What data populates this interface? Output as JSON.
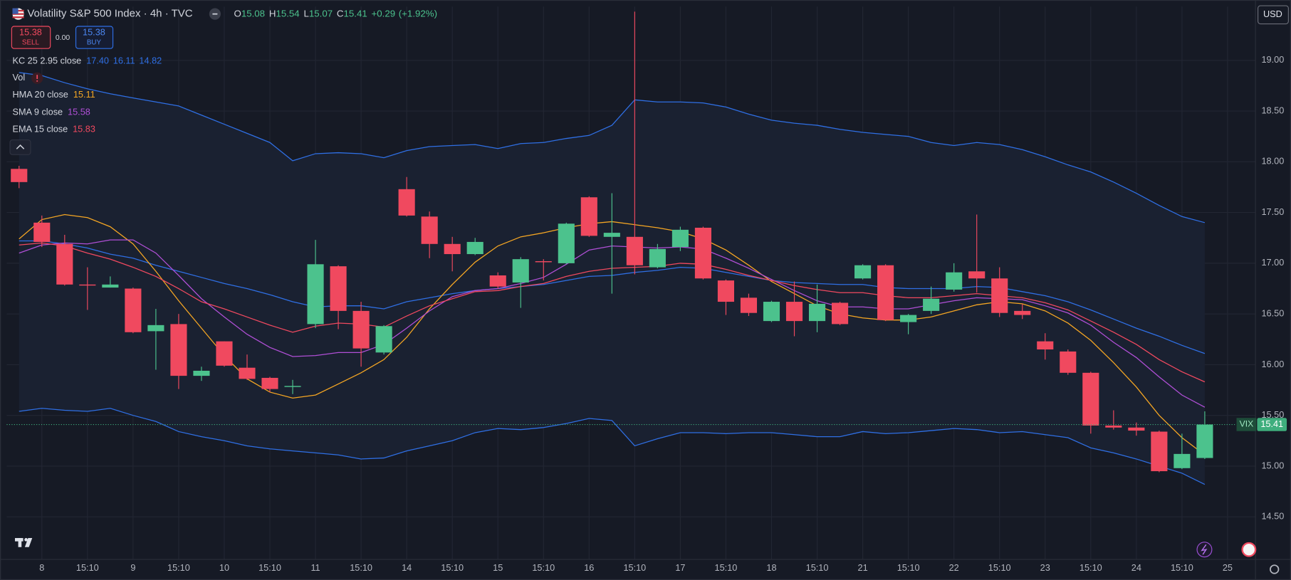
{
  "header": {
    "title": "Volatility S&P 500 Index · 4h · TVC",
    "ohlc": [
      {
        "key": "O",
        "value": "15.08"
      },
      {
        "key": "H",
        "value": "15.54"
      },
      {
        "key": "L",
        "value": "15.07"
      },
      {
        "key": "C",
        "value": "15.41"
      }
    ],
    "change": "+0.29",
    "change_pct": "(+1.92%)"
  },
  "trade": {
    "sell_price": "15.38",
    "sell": "SELL",
    "spread": "0.00",
    "buy_price": "15.38",
    "buy": "BUY"
  },
  "currency": "USD",
  "chart_data": {
    "type": "candlestick",
    "categories": [
      null,
      "8",
      null,
      "15:10",
      null,
      "9",
      null,
      "15:10",
      null,
      "10",
      null,
      "15:10",
      null,
      "11",
      null,
      "15:10",
      null,
      "14",
      null,
      "15:10",
      null,
      "15",
      null,
      "15:10",
      null,
      "16",
      null,
      "15:10",
      null,
      "17",
      null,
      "15:10",
      null,
      "18",
      null,
      "15:10",
      null,
      "21",
      null,
      "15:10",
      null,
      "22",
      null,
      "15:10",
      null,
      "23",
      null,
      "15:10",
      null,
      "24",
      null,
      "15:10",
      null,
      "25"
    ],
    "candles": {
      "up_color": "#4cc28d",
      "down_color": "#f0495f",
      "open": [
        17.93,
        17.4,
        17.19,
        16.79,
        16.76,
        16.75,
        16.33,
        16.4,
        15.89,
        16.23,
        15.97,
        15.87,
        15.78,
        16.4,
        16.97,
        16.53,
        16.12,
        17.73,
        17.46,
        17.19,
        17.09,
        16.88,
        16.81,
        17.02,
        17.0,
        17.65,
        17.26,
        17.26,
        16.96,
        17.16,
        17.35,
        16.83,
        16.66,
        16.43,
        16.62,
        16.43,
        16.61,
        16.85,
        16.98,
        16.42,
        16.53,
        16.74,
        16.92,
        16.85,
        16.53,
        16.23,
        16.13,
        15.92,
        15.4,
        15.38,
        15.34,
        14.98,
        15.08,
        null
      ],
      "high": [
        17.96,
        17.47,
        17.28,
        16.96,
        16.87,
        16.76,
        16.55,
        16.5,
        15.98,
        16.23,
        16.1,
        15.88,
        15.85,
        17.23,
        16.98,
        16.62,
        16.39,
        17.85,
        17.51,
        17.26,
        17.25,
        16.91,
        17.06,
        17.04,
        17.4,
        17.66,
        17.69,
        19.48,
        17.19,
        17.36,
        17.36,
        16.84,
        16.7,
        16.63,
        16.82,
        16.79,
        16.62,
        16.99,
        16.99,
        16.5,
        16.77,
        17.0,
        17.48,
        16.96,
        16.6,
        16.31,
        16.15,
        15.93,
        15.55,
        15.43,
        15.35,
        15.32,
        15.54,
        null
      ],
      "low": [
        17.74,
        17.16,
        16.78,
        16.54,
        16.76,
        16.31,
        15.95,
        15.76,
        15.84,
        15.98,
        15.85,
        15.73,
        15.71,
        16.36,
        16.35,
        15.98,
        16.1,
        17.46,
        17.05,
        16.92,
        17.08,
        16.75,
        16.56,
        16.83,
        16.99,
        17.26,
        16.7,
        16.89,
        16.95,
        17.12,
        16.84,
        16.49,
        16.48,
        16.42,
        16.28,
        16.32,
        16.39,
        16.84,
        16.43,
        16.3,
        16.5,
        16.72,
        16.71,
        16.47,
        16.45,
        16.05,
        15.9,
        15.32,
        15.36,
        15.3,
        14.94,
        14.97,
        15.07,
        null
      ],
      "close": [
        17.8,
        17.21,
        16.79,
        16.78,
        16.79,
        16.32,
        16.39,
        15.89,
        15.94,
        15.99,
        15.86,
        15.76,
        15.79,
        16.99,
        16.53,
        16.16,
        16.38,
        17.47,
        17.19,
        17.09,
        17.21,
        16.77,
        17.04,
        17.01,
        17.39,
        17.27,
        17.3,
        16.98,
        17.14,
        17.33,
        16.85,
        16.62,
        16.51,
        16.62,
        16.43,
        16.6,
        16.4,
        16.98,
        16.44,
        16.49,
        16.65,
        16.91,
        16.85,
        16.51,
        16.49,
        16.15,
        15.92,
        15.4,
        15.38,
        15.35,
        14.95,
        15.12,
        15.41,
        null
      ]
    },
    "series": [
      {
        "name": "KC 25 2.95 close",
        "color": "#2f6fe4",
        "fill": "#1a2131",
        "legend_values": [
          "17.40",
          "16.11",
          "14.82"
        ],
        "upper": [
          18.88,
          18.85,
          18.78,
          18.72,
          18.67,
          18.63,
          18.59,
          18.55,
          18.46,
          18.37,
          18.28,
          18.19,
          18.01,
          18.08,
          18.09,
          18.08,
          18.04,
          18.11,
          18.15,
          18.16,
          18.17,
          18.13,
          18.18,
          18.19,
          18.23,
          18.26,
          18.36,
          18.61,
          18.59,
          18.59,
          18.58,
          18.54,
          18.47,
          18.41,
          18.38,
          18.36,
          18.32,
          18.29,
          18.27,
          18.25,
          18.19,
          18.16,
          18.19,
          18.17,
          18.12,
          18.05,
          17.97,
          17.9,
          17.8,
          17.69,
          17.57,
          17.46,
          17.4,
          null
        ],
        "middle": [
          17.22,
          17.22,
          17.19,
          17.15,
          17.09,
          17.05,
          16.98,
          16.92,
          16.86,
          16.8,
          16.75,
          16.69,
          16.62,
          16.57,
          16.58,
          16.58,
          16.55,
          16.62,
          16.66,
          16.7,
          16.73,
          16.75,
          16.77,
          16.79,
          16.83,
          16.87,
          16.88,
          16.91,
          16.93,
          16.96,
          16.95,
          16.91,
          16.87,
          16.83,
          16.81,
          16.8,
          16.79,
          16.79,
          16.76,
          16.75,
          16.75,
          16.75,
          16.77,
          16.76,
          16.72,
          16.68,
          16.62,
          16.54,
          16.45,
          16.36,
          16.28,
          16.19,
          16.11,
          null
        ],
        "lower": [
          15.54,
          15.57,
          15.55,
          15.54,
          15.57,
          15.5,
          15.44,
          15.34,
          15.29,
          15.25,
          15.2,
          15.17,
          15.15,
          15.13,
          15.11,
          15.07,
          15.08,
          15.15,
          15.2,
          15.25,
          15.33,
          15.37,
          15.36,
          15.38,
          15.42,
          15.47,
          15.45,
          15.2,
          15.27,
          15.33,
          15.33,
          15.32,
          15.33,
          15.33,
          15.31,
          15.29,
          15.29,
          15.34,
          15.32,
          15.33,
          15.35,
          15.37,
          15.36,
          15.33,
          15.34,
          15.31,
          15.28,
          15.18,
          15.13,
          15.07,
          15.0,
          14.93,
          14.82,
          null
        ]
      },
      {
        "name": "Vol",
        "color": "#d1d4dc"
      },
      {
        "name": "HMA 20 close",
        "color": "#f5a623",
        "legend_values": [
          "15.11"
        ],
        "values": [
          17.24,
          17.43,
          17.48,
          17.45,
          17.36,
          17.19,
          16.92,
          16.63,
          16.36,
          16.09,
          15.86,
          15.73,
          15.67,
          15.7,
          15.81,
          15.92,
          16.05,
          16.27,
          16.55,
          16.79,
          17.01,
          17.17,
          17.26,
          17.3,
          17.35,
          17.39,
          17.41,
          17.38,
          17.35,
          17.31,
          17.24,
          17.13,
          16.98,
          16.82,
          16.7,
          16.58,
          16.5,
          16.46,
          16.44,
          16.44,
          16.47,
          16.53,
          16.59,
          16.62,
          16.6,
          16.53,
          16.41,
          16.24,
          16.02,
          15.78,
          15.5,
          15.28,
          15.11,
          null
        ]
      },
      {
        "name": "SMA 9 close",
        "color": "#b04fd6",
        "legend_values": [
          "15.58"
        ],
        "values": [
          17.1,
          17.18,
          17.2,
          17.19,
          17.23,
          17.23,
          17.1,
          16.88,
          16.65,
          16.47,
          16.3,
          16.17,
          16.08,
          16.09,
          16.12,
          16.12,
          16.2,
          16.36,
          16.53,
          16.67,
          16.73,
          16.75,
          16.8,
          16.86,
          16.99,
          17.13,
          17.17,
          17.16,
          17.15,
          17.16,
          17.14,
          17.05,
          16.95,
          16.84,
          16.73,
          16.63,
          16.57,
          16.57,
          16.55,
          16.55,
          16.59,
          16.63,
          16.66,
          16.65,
          16.64,
          16.58,
          16.51,
          16.39,
          16.22,
          16.07,
          15.88,
          15.7,
          15.58,
          null
        ]
      },
      {
        "name": "EMA 15 close",
        "color": "#f0495f",
        "legend_values": [
          "15.83"
        ],
        "values": [
          17.18,
          17.2,
          17.17,
          17.1,
          17.04,
          16.96,
          16.87,
          16.75,
          16.62,
          16.55,
          16.47,
          16.39,
          16.32,
          16.38,
          16.41,
          16.4,
          16.37,
          16.48,
          16.58,
          16.65,
          16.72,
          16.73,
          16.77,
          16.8,
          16.87,
          16.92,
          16.95,
          16.96,
          16.97,
          17.0,
          16.99,
          16.94,
          16.88,
          16.83,
          16.78,
          16.74,
          16.71,
          16.71,
          16.68,
          16.66,
          16.66,
          16.68,
          16.7,
          16.68,
          16.66,
          16.61,
          16.54,
          16.43,
          16.32,
          16.2,
          16.05,
          15.93,
          15.83,
          null
        ]
      }
    ],
    "last_price": {
      "symbol": "VIX",
      "value": 15.41
    },
    "ylim": [
      14.08,
      19.53
    ],
    "yticks": [
      {
        "value": 14.5,
        "label": "14.50"
      },
      {
        "value": 15,
        "label": "15.00"
      },
      {
        "value": 15.5,
        "label": "15.50"
      },
      {
        "value": 16,
        "label": "16.00"
      },
      {
        "value": 16.5,
        "label": "16.50"
      },
      {
        "value": 17,
        "label": "17.00"
      },
      {
        "value": 17.5,
        "label": "17.50"
      },
      {
        "value": 18,
        "label": "18.00"
      },
      {
        "value": 18.5,
        "label": "18.50"
      },
      {
        "value": 19,
        "label": "19.00"
      }
    ],
    "grid": true
  }
}
